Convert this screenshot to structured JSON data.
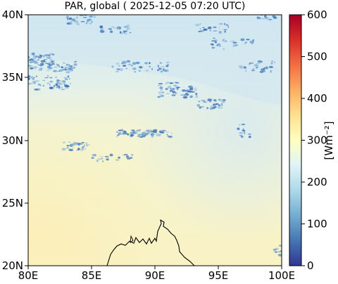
{
  "title": "PAR, global ( 2025-12-05 07:20 UTC)",
  "map": {
    "lon_ticks": [
      "80E",
      "85E",
      "90E",
      "95E",
      "100E"
    ],
    "lat_ticks": [
      "40N",
      "35N",
      "30N",
      "25N",
      "20N"
    ],
    "lon_range": [
      80,
      100
    ],
    "lat_range": [
      20,
      40
    ]
  },
  "colorbar": {
    "label": "[Wm⁻²]",
    "ticks": [
      "600",
      "500",
      "400",
      "300",
      "200",
      "100",
      "0"
    ],
    "range": [
      0,
      600
    ],
    "colormap": "RdYlBu_r",
    "colors": [
      "#313695",
      "#4575b4",
      "#74add1",
      "#abd9e9",
      "#e0f3f8",
      "#ffffbf",
      "#fee090",
      "#fdae61",
      "#f46d43",
      "#d73027",
      "#a50026"
    ]
  },
  "colors": {
    "clear_sky": "#f7f5c8",
    "haze": "#dcecf0",
    "cloud": "#4f86c6",
    "coastline": "#000000"
  }
}
